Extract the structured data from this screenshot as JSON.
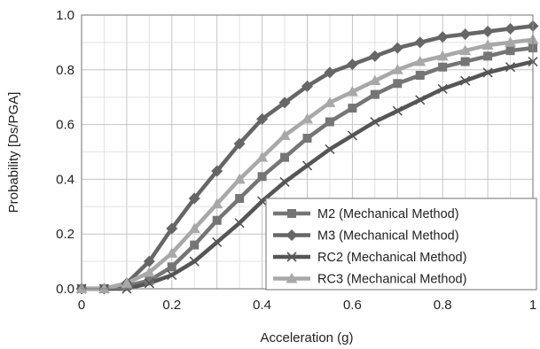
{
  "chart_data": {
    "type": "line",
    "xlabel": "Acceleration (g)",
    "ylabel": "Probability [Ds/PGA]",
    "xlim": [
      0,
      1
    ],
    "ylim": [
      0,
      1
    ],
    "x_ticks": [
      "0",
      "0.2",
      "0.4",
      "0.6",
      "0.8",
      "1"
    ],
    "y_ticks": [
      "0.0",
      "0.2",
      "0.4",
      "0.6",
      "0.8",
      "1.0"
    ],
    "grid": true,
    "legend_position": "bottom-right",
    "x": [
      0,
      0.05,
      0.1,
      0.15,
      0.2,
      0.25,
      0.3,
      0.35,
      0.4,
      0.45,
      0.5,
      0.55,
      0.6,
      0.65,
      0.7,
      0.75,
      0.8,
      0.85,
      0.9,
      0.95,
      1.0
    ],
    "series": [
      {
        "name": "M2 (Mechanical Method)",
        "marker": "square",
        "color": "#757575",
        "values": [
          0,
          0,
          0.01,
          0.03,
          0.08,
          0.16,
          0.25,
          0.33,
          0.41,
          0.48,
          0.55,
          0.61,
          0.66,
          0.71,
          0.75,
          0.78,
          0.81,
          0.83,
          0.85,
          0.87,
          0.88
        ]
      },
      {
        "name": "M3 (Mechanical Method)",
        "marker": "diamond",
        "color": "#666666",
        "values": [
          0,
          0,
          0.02,
          0.1,
          0.22,
          0.33,
          0.43,
          0.53,
          0.62,
          0.68,
          0.74,
          0.79,
          0.82,
          0.85,
          0.88,
          0.9,
          0.92,
          0.93,
          0.94,
          0.95,
          0.96
        ]
      },
      {
        "name": "RC2 (Mechanical Method)",
        "marker": "x",
        "color": "#555555",
        "values": [
          0,
          0,
          0,
          0.02,
          0.05,
          0.1,
          0.17,
          0.24,
          0.32,
          0.39,
          0.45,
          0.51,
          0.56,
          0.61,
          0.65,
          0.69,
          0.73,
          0.76,
          0.79,
          0.81,
          0.83
        ]
      },
      {
        "name": "RC3 (Mechanical Method)",
        "marker": "triangle",
        "color": "#a8a8a8",
        "values": [
          0,
          0,
          0.02,
          0.06,
          0.13,
          0.22,
          0.31,
          0.4,
          0.48,
          0.56,
          0.62,
          0.68,
          0.72,
          0.76,
          0.8,
          0.83,
          0.85,
          0.87,
          0.89,
          0.9,
          0.91
        ]
      }
    ]
  }
}
